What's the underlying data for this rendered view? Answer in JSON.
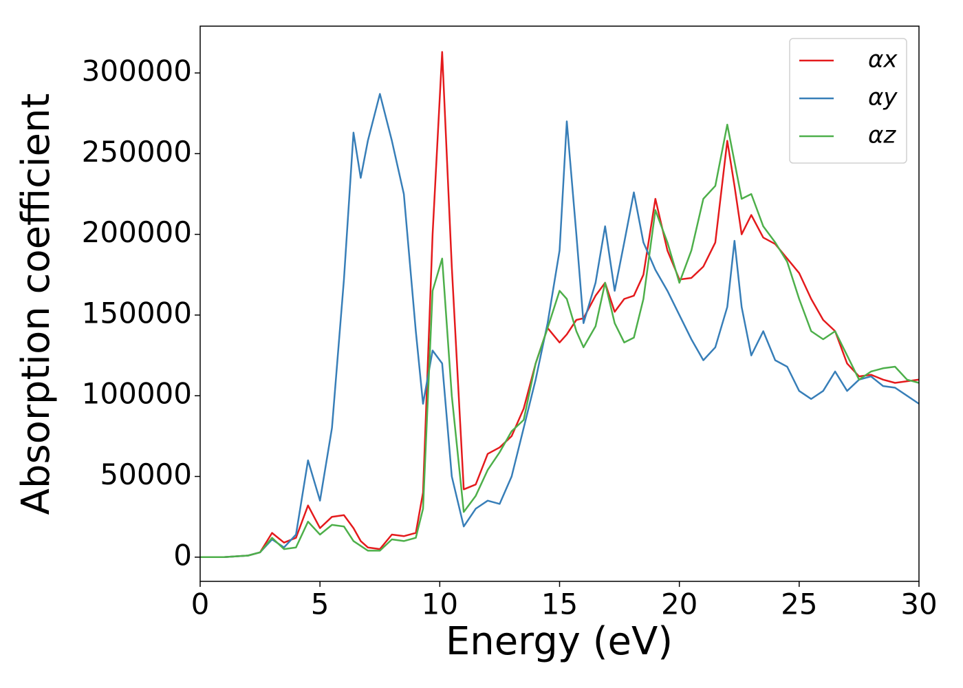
{
  "chart_data": {
    "type": "line",
    "xlabel": "Energy (eV)",
    "ylabel": "Absorption coefficient",
    "x": [
      0,
      1,
      2,
      2.5,
      3,
      3.5,
      4,
      4.5,
      5,
      5.5,
      6,
      6.4,
      6.7,
      7,
      7.5,
      8,
      8.5,
      9,
      9.3,
      9.7,
      10.1,
      10.5,
      11,
      11.5,
      12,
      12.5,
      13,
      13.5,
      14,
      14.5,
      15,
      15.3,
      15.7,
      16,
      16.5,
      16.9,
      17.3,
      17.7,
      18.1,
      18.5,
      19,
      19.5,
      20,
      20.5,
      21,
      21.5,
      22,
      22.3,
      22.6,
      23,
      23.5,
      24,
      24.5,
      25,
      25.5,
      26,
      26.5,
      27,
      27.5,
      28,
      28.5,
      29,
      29.5,
      30
    ],
    "series": [
      {
        "name": "αx",
        "color": "#e41a1c",
        "values": [
          0,
          0,
          1000,
          3000,
          15000,
          9000,
          12000,
          32000,
          18000,
          25000,
          26000,
          18000,
          10000,
          6000,
          5000,
          14000,
          13000,
          15000,
          40000,
          200000,
          313000,
          180000,
          42000,
          45000,
          64000,
          68000,
          75000,
          92000,
          120000,
          142000,
          133000,
          138000,
          147000,
          148000,
          162000,
          170000,
          152000,
          160000,
          162000,
          175000,
          222000,
          190000,
          172000,
          173000,
          180000,
          195000,
          258000,
          230000,
          200000,
          212000,
          198000,
          194000,
          185000,
          176000,
          160000,
          147000,
          140000,
          120000,
          112000,
          113000,
          110000,
          108000,
          109000,
          110000
        ]
      },
      {
        "name": "αy",
        "color": "#377eb8",
        "values": [
          0,
          0,
          1000,
          3000,
          11000,
          6000,
          14000,
          60000,
          35000,
          80000,
          172000,
          263000,
          235000,
          258000,
          287000,
          258000,
          225000,
          140000,
          95000,
          128000,
          120000,
          50000,
          19000,
          30000,
          35000,
          33000,
          50000,
          80000,
          110000,
          145000,
          190000,
          270000,
          200000,
          145000,
          170000,
          205000,
          165000,
          195000,
          226000,
          195000,
          178000,
          165000,
          150000,
          135000,
          122000,
          130000,
          155000,
          196000,
          155000,
          125000,
          140000,
          122000,
          118000,
          103000,
          98000,
          103000,
          115000,
          103000,
          110000,
          112000,
          106000,
          105000,
          100000,
          95000
        ]
      },
      {
        "name": "αz",
        "color": "#4daf4a",
        "values": [
          0,
          0,
          1000,
          3000,
          12000,
          5000,
          6000,
          22000,
          14000,
          20000,
          19000,
          10000,
          7000,
          4000,
          4000,
          11000,
          10000,
          12000,
          30000,
          165000,
          185000,
          100000,
          28000,
          38000,
          54000,
          65000,
          78000,
          85000,
          120000,
          142000,
          165000,
          160000,
          140000,
          130000,
          143000,
          170000,
          145000,
          133000,
          136000,
          160000,
          215000,
          195000,
          170000,
          190000,
          222000,
          230000,
          268000,
          245000,
          222000,
          225000,
          205000,
          195000,
          183000,
          160000,
          140000,
          135000,
          140000,
          125000,
          110000,
          115000,
          117000,
          118000,
          110000,
          108000
        ]
      }
    ],
    "xlim": [
      0,
      30
    ],
    "xticks": [
      0,
      5,
      10,
      15,
      20,
      25,
      30
    ],
    "ylim": [
      -15000,
      329000
    ],
    "yticks": [
      0,
      50000,
      100000,
      150000,
      200000,
      250000,
      300000
    ],
    "grid": false,
    "legend": "upper right"
  }
}
